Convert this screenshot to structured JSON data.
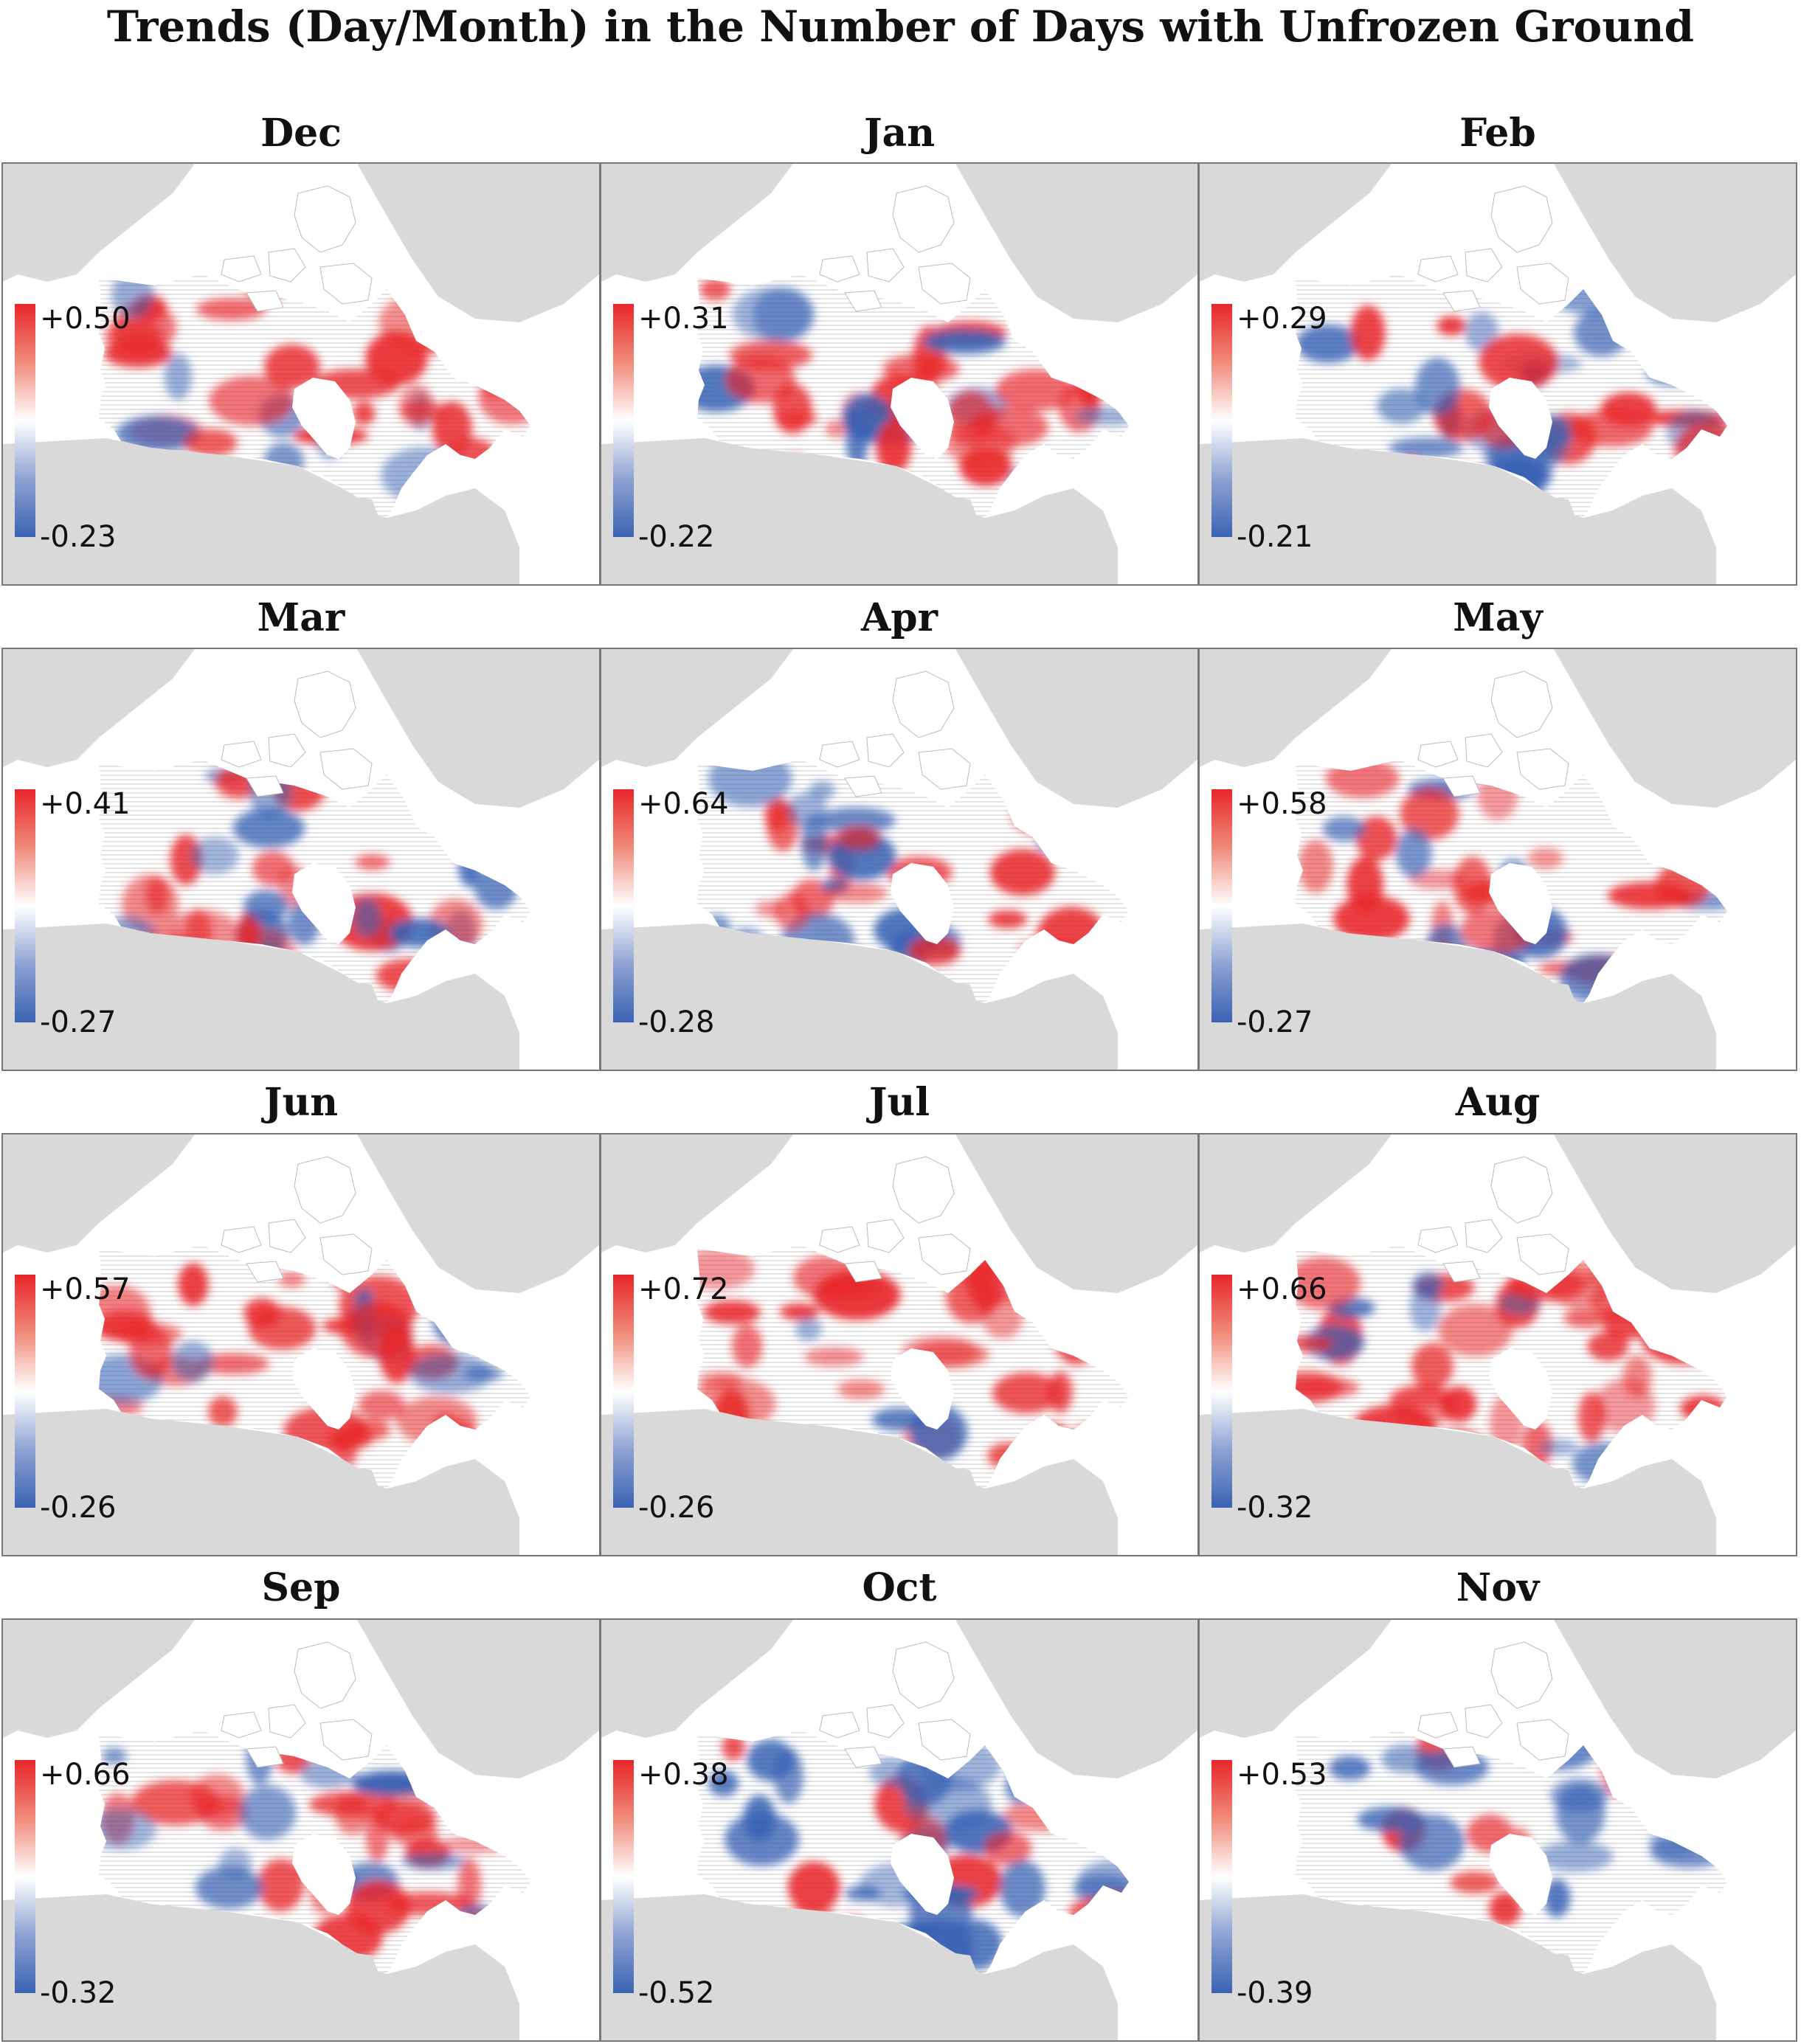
{
  "title": "Trends (Day/Month) in the Number of Days with Unfrozen Ground",
  "colors": {
    "positive": "#e8262a",
    "negative": "#3a63b4",
    "neutral": "#ffffff",
    "land_background": "#d9d9d9",
    "panel_border": "#777777"
  },
  "panels": [
    {
      "month": "Dec",
      "max": "+0.50",
      "min": "-0.23"
    },
    {
      "month": "Jan",
      "max": "+0.31",
      "min": "-0.22"
    },
    {
      "month": "Feb",
      "max": "+0.29",
      "min": "-0.21"
    },
    {
      "month": "Mar",
      "max": "+0.41",
      "min": "-0.27"
    },
    {
      "month": "Apr",
      "max": "+0.64",
      "min": "-0.28"
    },
    {
      "month": "May",
      "max": "+0.58",
      "min": "-0.27"
    },
    {
      "month": "Jun",
      "max": "+0.57",
      "min": "-0.26"
    },
    {
      "month": "Jul",
      "max": "+0.72",
      "min": "-0.26"
    },
    {
      "month": "Aug",
      "max": "+0.66",
      "min": "-0.32"
    },
    {
      "month": "Sep",
      "max": "+0.66",
      "min": "-0.32"
    },
    {
      "month": "Oct",
      "max": "+0.38",
      "min": "-0.52"
    },
    {
      "month": "Nov",
      "max": "+0.53",
      "min": "-0.39"
    }
  ]
}
